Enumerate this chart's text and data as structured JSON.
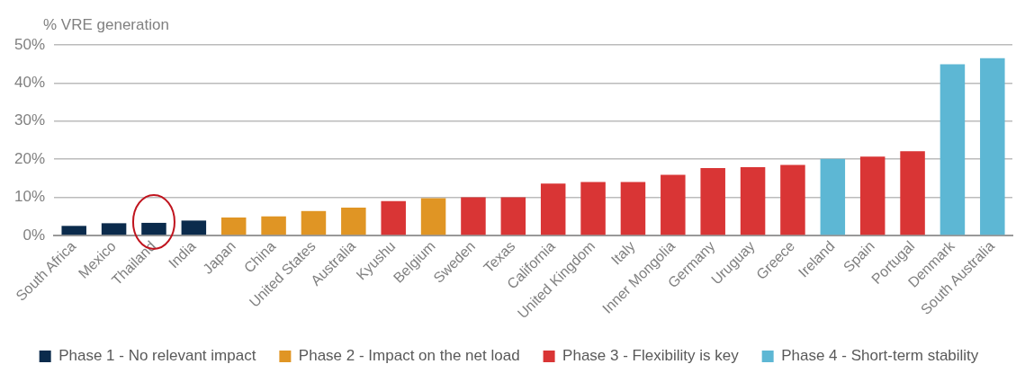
{
  "chart_data": {
    "type": "bar",
    "ylabel": "% VRE generation",
    "categories": [
      "South Africa",
      "Mexico",
      "Thailand",
      "India",
      "Japan",
      "China",
      "United States",
      "Australia",
      "Kyushu",
      "Belgium",
      "Sweden",
      "Texas",
      "California",
      "United Kingdom",
      "Italy",
      "Inner Mongolia",
      "Germany",
      "Uruguay",
      "Greece",
      "Ireland",
      "Spain",
      "Portugal",
      "Denmark",
      "South Australia"
    ],
    "series": [
      {
        "name": "Phase 1 - No relevant impact",
        "color": "#0b2b4c",
        "values": [
          2.5,
          3.2,
          3.3,
          3.9,
          null,
          null,
          null,
          null,
          null,
          null,
          null,
          null,
          null,
          null,
          null,
          null,
          null,
          null,
          null,
          null,
          null,
          null,
          null,
          null
        ]
      },
      {
        "name": "Phase 2 - Impact on the net load",
        "color": "#e09524",
        "values": [
          null,
          null,
          null,
          null,
          4.7,
          5.0,
          6.4,
          7.3,
          null,
          9.8,
          null,
          null,
          null,
          null,
          null,
          null,
          null,
          null,
          null,
          null,
          null,
          null,
          null,
          null
        ]
      },
      {
        "name": "Phase 3 - Flexibility is key",
        "color": "#d93535",
        "values": [
          null,
          null,
          null,
          null,
          null,
          null,
          null,
          null,
          9.0,
          null,
          10.0,
          10.0,
          13.6,
          14.0,
          14.0,
          15.9,
          17.7,
          17.9,
          18.5,
          null,
          20.7,
          22.1,
          null,
          null
        ]
      },
      {
        "name": "Phase 4 - Short-term stability",
        "color": "#5db7d4",
        "values": [
          null,
          null,
          null,
          null,
          null,
          null,
          null,
          null,
          null,
          null,
          null,
          null,
          null,
          null,
          null,
          null,
          null,
          null,
          null,
          20.1,
          null,
          null,
          44.9,
          46.5
        ]
      }
    ],
    "ylim": [
      0,
      50
    ],
    "yticks": [
      {
        "value": 0,
        "label": "0%"
      },
      {
        "value": 10,
        "label": "10%"
      },
      {
        "value": 20,
        "label": "20%"
      },
      {
        "value": 30,
        "label": "30%"
      },
      {
        "value": 40,
        "label": "40%"
      },
      {
        "value": 50,
        "label": "50%"
      }
    ],
    "grid": "y",
    "legend": "bottom"
  }
}
